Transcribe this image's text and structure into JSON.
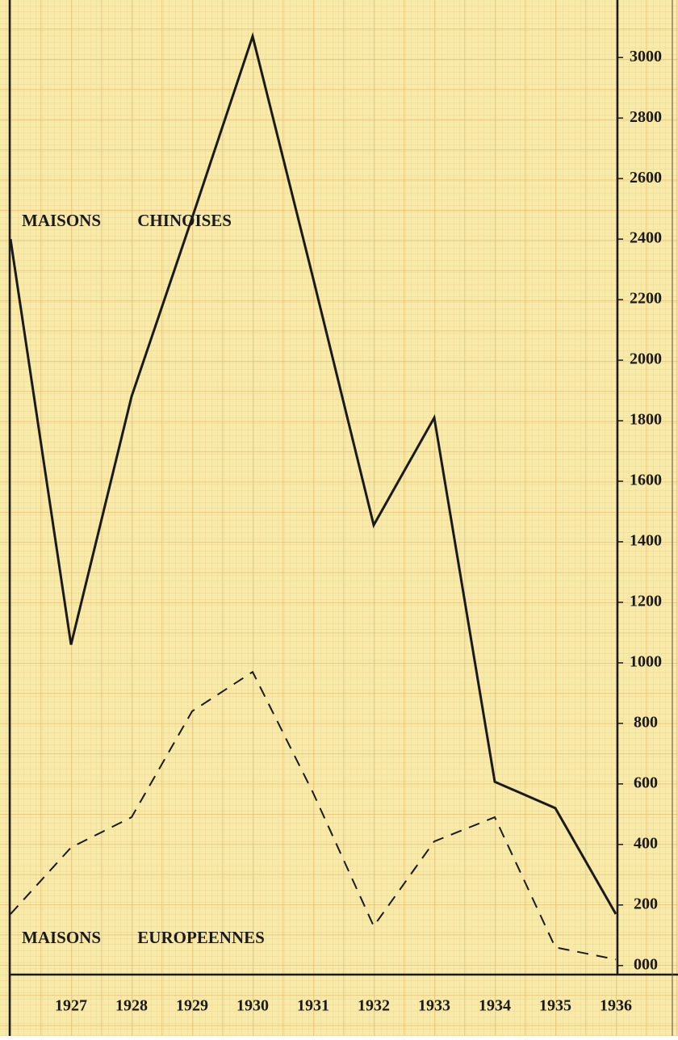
{
  "chart_data": {
    "type": "line",
    "categories": [
      null,
      "1927",
      "1928",
      "1929",
      "1930",
      "1931",
      "1932",
      "1933",
      "1934",
      "1935",
      "1936"
    ],
    "series": [
      {
        "name": "MAISONS CHINOISES",
        "color": "#1a1a1a",
        "dash": "solid",
        "values": [
          2400,
          1060,
          1880,
          2470,
          3070,
          2270,
          1455,
          1810,
          607,
          520,
          170
        ]
      },
      {
        "name": "MAISONS EUROPEENNES",
        "color": "#1a1a1a",
        "dash": "dashed",
        "values": [
          170,
          390,
          490,
          840,
          970,
          570,
          130,
          410,
          490,
          60,
          20
        ]
      }
    ],
    "ylim": [
      -30,
      3190
    ],
    "yticks": [
      {
        "value": 0,
        "label": "000"
      },
      200,
      400,
      600,
      800,
      1000,
      1200,
      1400,
      1600,
      1800,
      2000,
      2200,
      2400,
      2600,
      2800,
      3000
    ]
  }
}
